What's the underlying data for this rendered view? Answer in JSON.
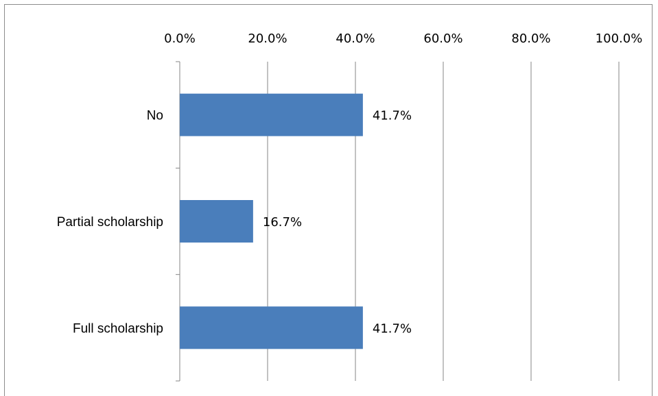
{
  "chart_data": {
    "type": "bar",
    "orientation": "horizontal",
    "categories": [
      "No",
      "Partial scholarship",
      "Full scholarship"
    ],
    "values": [
      41.7,
      16.7,
      41.7
    ],
    "data_labels": [
      "41.7%",
      "16.7%",
      "41.7%"
    ],
    "xlim": [
      0,
      100
    ],
    "x_ticks": [
      0,
      20,
      40,
      60,
      80,
      100
    ],
    "x_tick_labels": [
      "0.0%",
      "20.0%",
      "40.0%",
      "60.0%",
      "80.0%",
      "100.0%"
    ],
    "x_axis_position": "top",
    "grid": true,
    "legend": "none",
    "colors": {
      "bar": "#4a7ebb",
      "grid": "#868686"
    }
  }
}
